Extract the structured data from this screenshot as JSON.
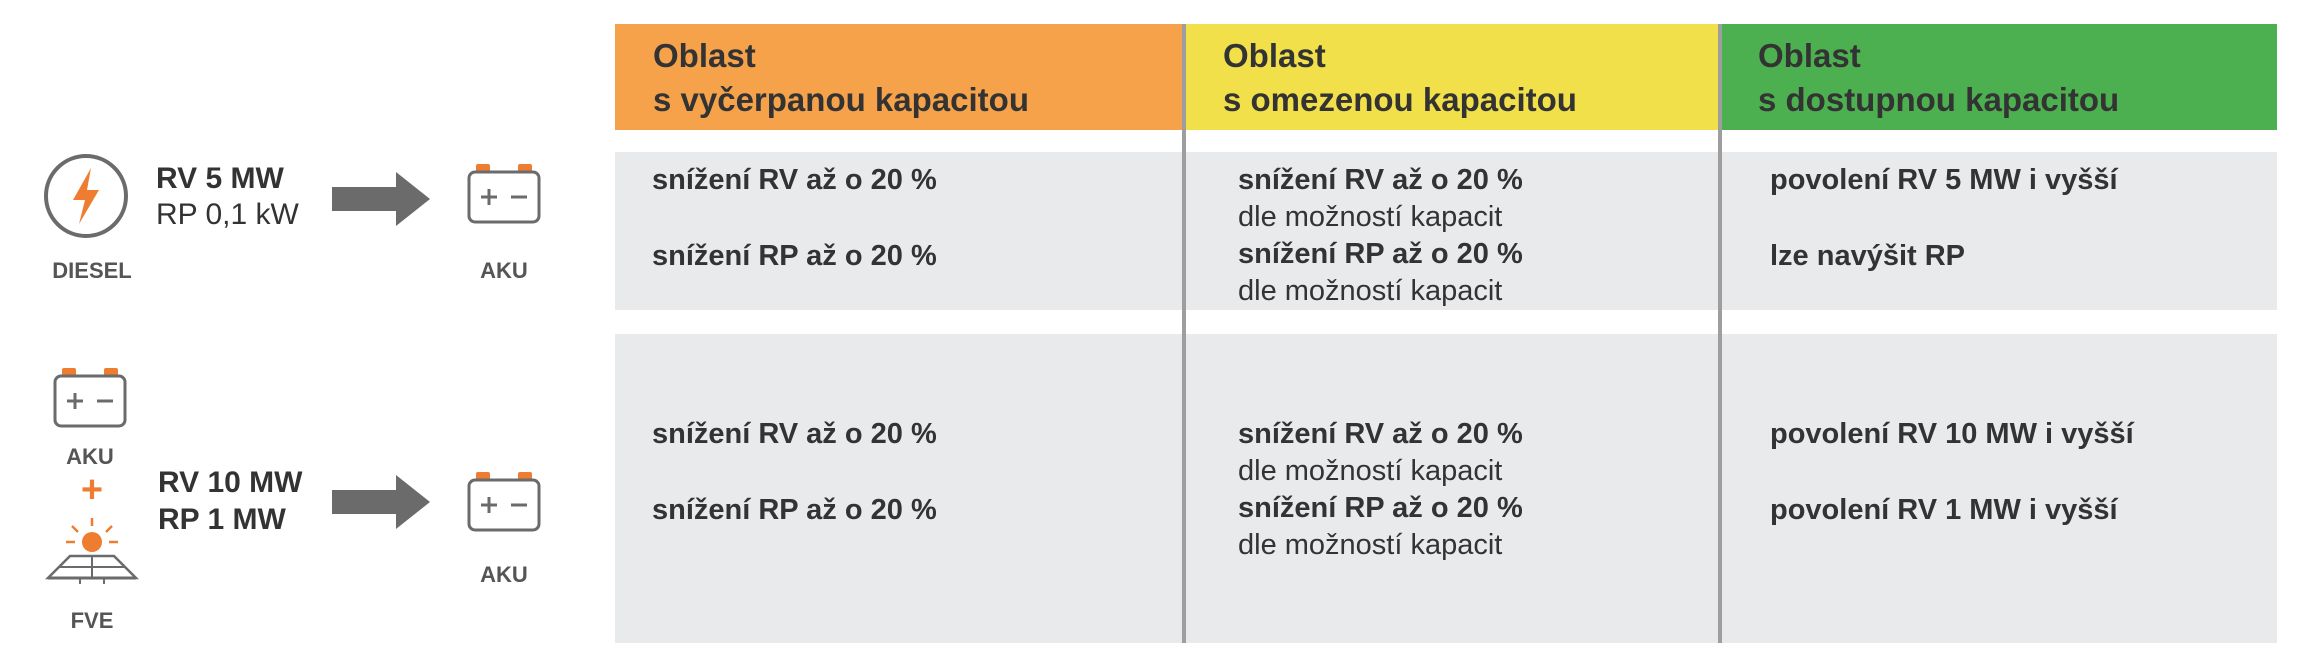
{
  "left": {
    "row1": {
      "source_label": "DIESEL",
      "rv": "RV 5 MW",
      "rp": "RP 0,1 kW",
      "target_label": "AKU"
    },
    "row2": {
      "source_top_label": "AKU",
      "plus": "+",
      "source_bottom_label": "FVE",
      "rv": "RV 10 MW",
      "rp": "RP 1 MW",
      "target_label": "AKU"
    },
    "icons": {
      "diesel": "lightning-bolt-icon",
      "battery": "battery-icon",
      "solar": "solar-panel-icon",
      "arrow": "arrow-right-icon"
    }
  },
  "table": {
    "headers": [
      {
        "line1": "Oblast",
        "line2": "s vyčerpanou kapacitou",
        "color": "#f5a24b"
      },
      {
        "line1": "Oblast",
        "line2": "s omezenou kapacitou",
        "color": "#f2e04a"
      },
      {
        "line1": "Oblast",
        "line2": "s dostupnou kapacitou",
        "color": "#4caf50"
      }
    ],
    "rows": [
      {
        "col1": {
          "a": "snížení RV až o 20 %",
          "b": "snížení RP až o 20 %"
        },
        "col2": {
          "a": "snížení RV až o 20 %",
          "a_note": "dle možností kapacit",
          "b": "snížení RP až o 20 %",
          "b_note": "dle možností kapacit"
        },
        "col3": {
          "a": "povolení RV 5 MW i vyšší",
          "b": "lze navýšit RP"
        }
      },
      {
        "col1": {
          "a": "snížení RV až o 20 %",
          "b": "snížení RP až o 20 %"
        },
        "col2": {
          "a": "snížení RV až o 20 %",
          "a_note": "dle možností kapacit",
          "b": "snížení RP až o 20 %",
          "b_note": "dle možností kapacit"
        },
        "col3": {
          "a": "povolení RV 10 MW i vyšší",
          "b": "povolení RV 1 MW i vyšší"
        }
      }
    ]
  },
  "colors": {
    "accent_orange": "#ee7d32",
    "band_gray": "#e8eaec",
    "icon_gray": "#6b6b6b",
    "divider": "#9e9e9e"
  }
}
